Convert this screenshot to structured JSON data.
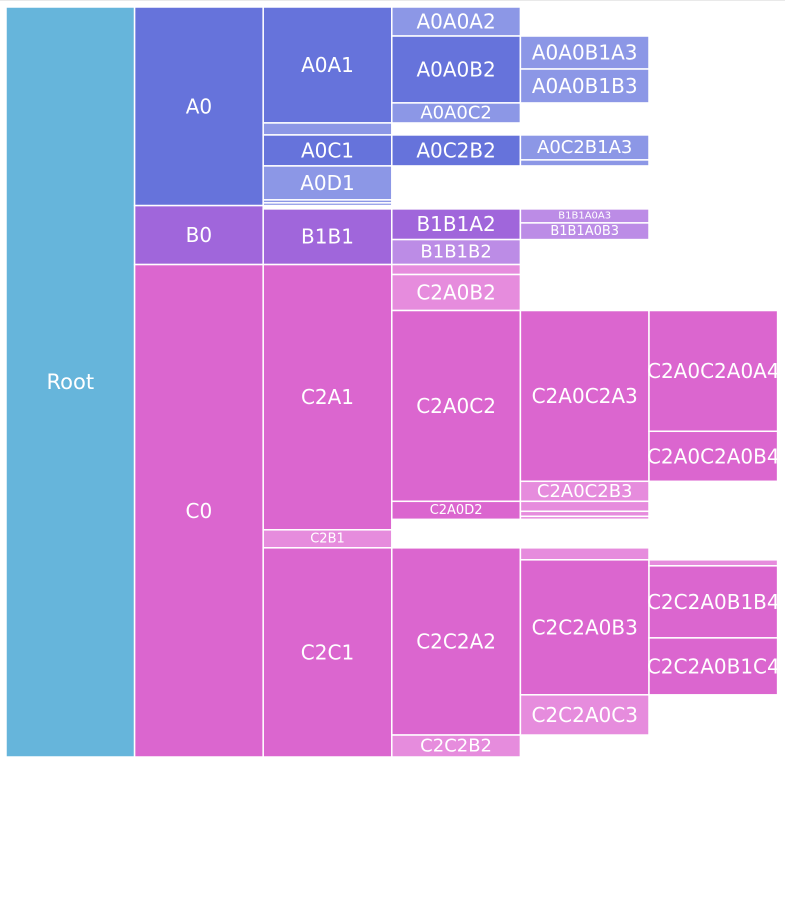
{
  "chart_data": {
    "type": "icicle",
    "title": "",
    "colors": {
      "root": "#66b5db",
      "A": "#6673db",
      "A_light": "#8c97e6",
      "B": "#a066db",
      "B_light": "#bc8ce6",
      "C": "#db66cf",
      "C_light": "#e68cdd",
      "border": "#ffffff",
      "label": "#ffffff"
    },
    "nodes": [
      {
        "id": "root",
        "label": "Root",
        "depth": 0,
        "start": 0,
        "end": 1,
        "color": "root"
      },
      {
        "id": "A0",
        "label": "A0",
        "depth": 1,
        "start": 0,
        "end": 0.2648,
        "color": "A"
      },
      {
        "id": "B0",
        "label": "B0",
        "depth": 1,
        "start": 0.2648,
        "end": 0.3434,
        "color": "B"
      },
      {
        "id": "C0",
        "label": "C0",
        "depth": 1,
        "start": 0.3434,
        "end": 1,
        "color": "C"
      },
      {
        "id": "A0A1",
        "label": "A0A1",
        "depth": 2,
        "start": 0,
        "end": 0.1546,
        "color": "A"
      },
      {
        "id": "A0x1",
        "label": "",
        "depth": 2,
        "start": 0.1546,
        "end": 0.1706,
        "color": "A_light"
      },
      {
        "id": "A0C1",
        "label": "A0C1",
        "depth": 2,
        "start": 0.1706,
        "end": 0.2119,
        "color": "A"
      },
      {
        "id": "A0D1",
        "label": "A0D1",
        "depth": 2,
        "start": 0.2119,
        "end": 0.2572,
        "color": "A_light"
      },
      {
        "id": "A0x2",
        "label": "",
        "depth": 2,
        "start": 0.2572,
        "end": 0.2612,
        "color": "A_light"
      },
      {
        "id": "A0x3",
        "label": "",
        "depth": 2,
        "start": 0.2612,
        "end": 0.2648,
        "color": "A_light"
      },
      {
        "id": "B1B1",
        "label": "B1B1",
        "depth": 2,
        "start": 0.2692,
        "end": 0.3434,
        "color": "B"
      },
      {
        "id": "C2A1",
        "label": "C2A1",
        "depth": 2,
        "start": 0.3434,
        "end": 0.6971,
        "color": "C"
      },
      {
        "id": "C2B1",
        "label": "C2B1",
        "depth": 2,
        "start": 0.6971,
        "end": 0.7211,
        "color": "C_light"
      },
      {
        "id": "C2C1",
        "label": "C2C1",
        "depth": 2,
        "start": 0.7211,
        "end": 1,
        "color": "C"
      },
      {
        "id": "A0A0A2",
        "label": "A0A0A2",
        "depth": 3,
        "start": 0,
        "end": 0.0387,
        "color": "A_light"
      },
      {
        "id": "A0A0B2",
        "label": "A0A0B2",
        "depth": 3,
        "start": 0.0387,
        "end": 0.1279,
        "color": "A"
      },
      {
        "id": "A0A0C2",
        "label": "A0A0C2",
        "depth": 3,
        "start": 0.1279,
        "end": 0.1546,
        "color": "A_light"
      },
      {
        "id": "A0C2B2",
        "label": "A0C2B2",
        "depth": 3,
        "start": 0.1706,
        "end": 0.2119,
        "color": "A"
      },
      {
        "id": "B1B1A2",
        "label": "B1B1A2",
        "depth": 3,
        "start": 0.2692,
        "end": 0.3101,
        "color": "B"
      },
      {
        "id": "B1B1B2",
        "label": "B1B1B2",
        "depth": 3,
        "start": 0.3101,
        "end": 0.3434,
        "color": "B_light"
      },
      {
        "id": "C2x2",
        "label": "",
        "depth": 3,
        "start": 0.3434,
        "end": 0.3567,
        "color": "C_light"
      },
      {
        "id": "C2A0B2",
        "label": "C2A0B2",
        "depth": 3,
        "start": 0.3567,
        "end": 0.4047,
        "color": "C_light"
      },
      {
        "id": "C2A0C2",
        "label": "C2A0C2",
        "depth": 3,
        "start": 0.4047,
        "end": 0.6591,
        "color": "C"
      },
      {
        "id": "C2A0D2",
        "label": "C2A0D2",
        "depth": 3,
        "start": 0.6591,
        "end": 0.6831,
        "color": "C"
      },
      {
        "id": "C2C2A2",
        "label": "C2C2A2",
        "depth": 3,
        "start": 0.7211,
        "end": 0.9707,
        "color": "C"
      },
      {
        "id": "C2C2B2",
        "label": "C2C2B2",
        "depth": 3,
        "start": 0.9707,
        "end": 1,
        "color": "C_light"
      },
      {
        "id": "A0A0B1A3",
        "label": "A0A0B1A3",
        "depth": 4,
        "start": 0.0387,
        "end": 0.0827,
        "color": "A_light"
      },
      {
        "id": "A0A0B1B3",
        "label": "A0A0B1B3",
        "depth": 4,
        "start": 0.0827,
        "end": 0.1279,
        "color": "A_light"
      },
      {
        "id": "A0C2B1A3",
        "label": "A0C2B1A3",
        "depth": 4,
        "start": 0.1706,
        "end": 0.2039,
        "color": "A_light"
      },
      {
        "id": "A0x4",
        "label": "",
        "depth": 4,
        "start": 0.2039,
        "end": 0.2119,
        "color": "A_light"
      },
      {
        "id": "B1B1A0A3",
        "label": "B1B1A0A3",
        "depth": 4,
        "start": 0.2692,
        "end": 0.2879,
        "color": "B_light"
      },
      {
        "id": "B1B1A0B3",
        "label": "B1B1A0B3",
        "depth": 4,
        "start": 0.2879,
        "end": 0.3101,
        "color": "B_light"
      },
      {
        "id": "C2A0C2A3",
        "label": "C2A0C2A3",
        "depth": 4,
        "start": 0.4047,
        "end": 0.6324,
        "color": "C"
      },
      {
        "id": "C2A0C2B3",
        "label": "C2A0C2B3",
        "depth": 4,
        "start": 0.6324,
        "end": 0.6591,
        "color": "C_light"
      },
      {
        "id": "C2x4a",
        "label": "",
        "depth": 4,
        "start": 0.6591,
        "end": 0.6724,
        "color": "C_light"
      },
      {
        "id": "C2x4b",
        "label": "",
        "depth": 4,
        "start": 0.6724,
        "end": 0.6791,
        "color": "C_light"
      },
      {
        "id": "C2x4c",
        "label": "",
        "depth": 4,
        "start": 0.6791,
        "end": 0.6831,
        "color": "C_light"
      },
      {
        "id": "C2x4d",
        "label": "",
        "depth": 4,
        "start": 0.7211,
        "end": 0.7371,
        "color": "C_light"
      },
      {
        "id": "C2C2A0B3",
        "label": "C2C2A0B3",
        "depth": 4,
        "start": 0.7371,
        "end": 0.9171,
        "color": "C"
      },
      {
        "id": "C2C2A0C3",
        "label": "C2C2A0C3",
        "depth": 4,
        "start": 0.9171,
        "end": 0.9707,
        "color": "C_light"
      },
      {
        "id": "C2A0C2A0A4",
        "label": "C2A0C2A0A4",
        "depth": 5,
        "start": 0.4047,
        "end": 0.5657,
        "color": "C"
      },
      {
        "id": "C2A0C2A0B4",
        "label": "C2A0C2A0B4",
        "depth": 5,
        "start": 0.5657,
        "end": 0.6324,
        "color": "C"
      },
      {
        "id": "C2x5",
        "label": "",
        "depth": 5,
        "start": 0.7371,
        "end": 0.7451,
        "color": "C_light"
      },
      {
        "id": "C2C2A0B1B4",
        "label": "C2C2A0B1B4",
        "depth": 5,
        "start": 0.7451,
        "end": 0.8412,
        "color": "C"
      },
      {
        "id": "C2C2A0B1C4",
        "label": "C2C2A0B1C4",
        "depth": 5,
        "start": 0.8412,
        "end": 0.9171,
        "color": "C"
      }
    ]
  }
}
